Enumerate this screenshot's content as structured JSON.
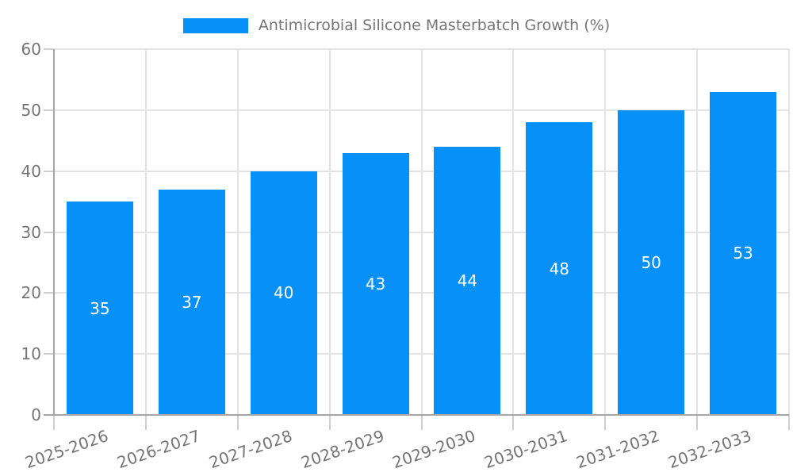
{
  "colors": {
    "bar": "#0690F8",
    "grid": "#E3E3E3",
    "tick": "#CFCFCF",
    "axis": "#A6A6A6",
    "text": "#757575",
    "value_label": "#FFFFFF",
    "background": "#FFFFFF"
  },
  "chart_data": {
    "type": "bar",
    "legend_label": "Antimicrobial Silicone Masterbatch Growth (%)",
    "categories": [
      "2025-2026",
      "2026-2027",
      "2027-2028",
      "2028-2029",
      "2029-2030",
      "2030-2031",
      "2031-2032",
      "2032-2033"
    ],
    "values": [
      35,
      37,
      40,
      43,
      44,
      48,
      50,
      53
    ],
    "title": "",
    "xlabel": "",
    "ylabel": "",
    "ylim": [
      0,
      60
    ],
    "yticks": [
      0,
      10,
      20,
      30,
      40,
      50,
      60
    ],
    "grid": true,
    "legend_position": "top-center",
    "value_label_position": "bar-center",
    "x_label_rotation_deg": -19
  }
}
